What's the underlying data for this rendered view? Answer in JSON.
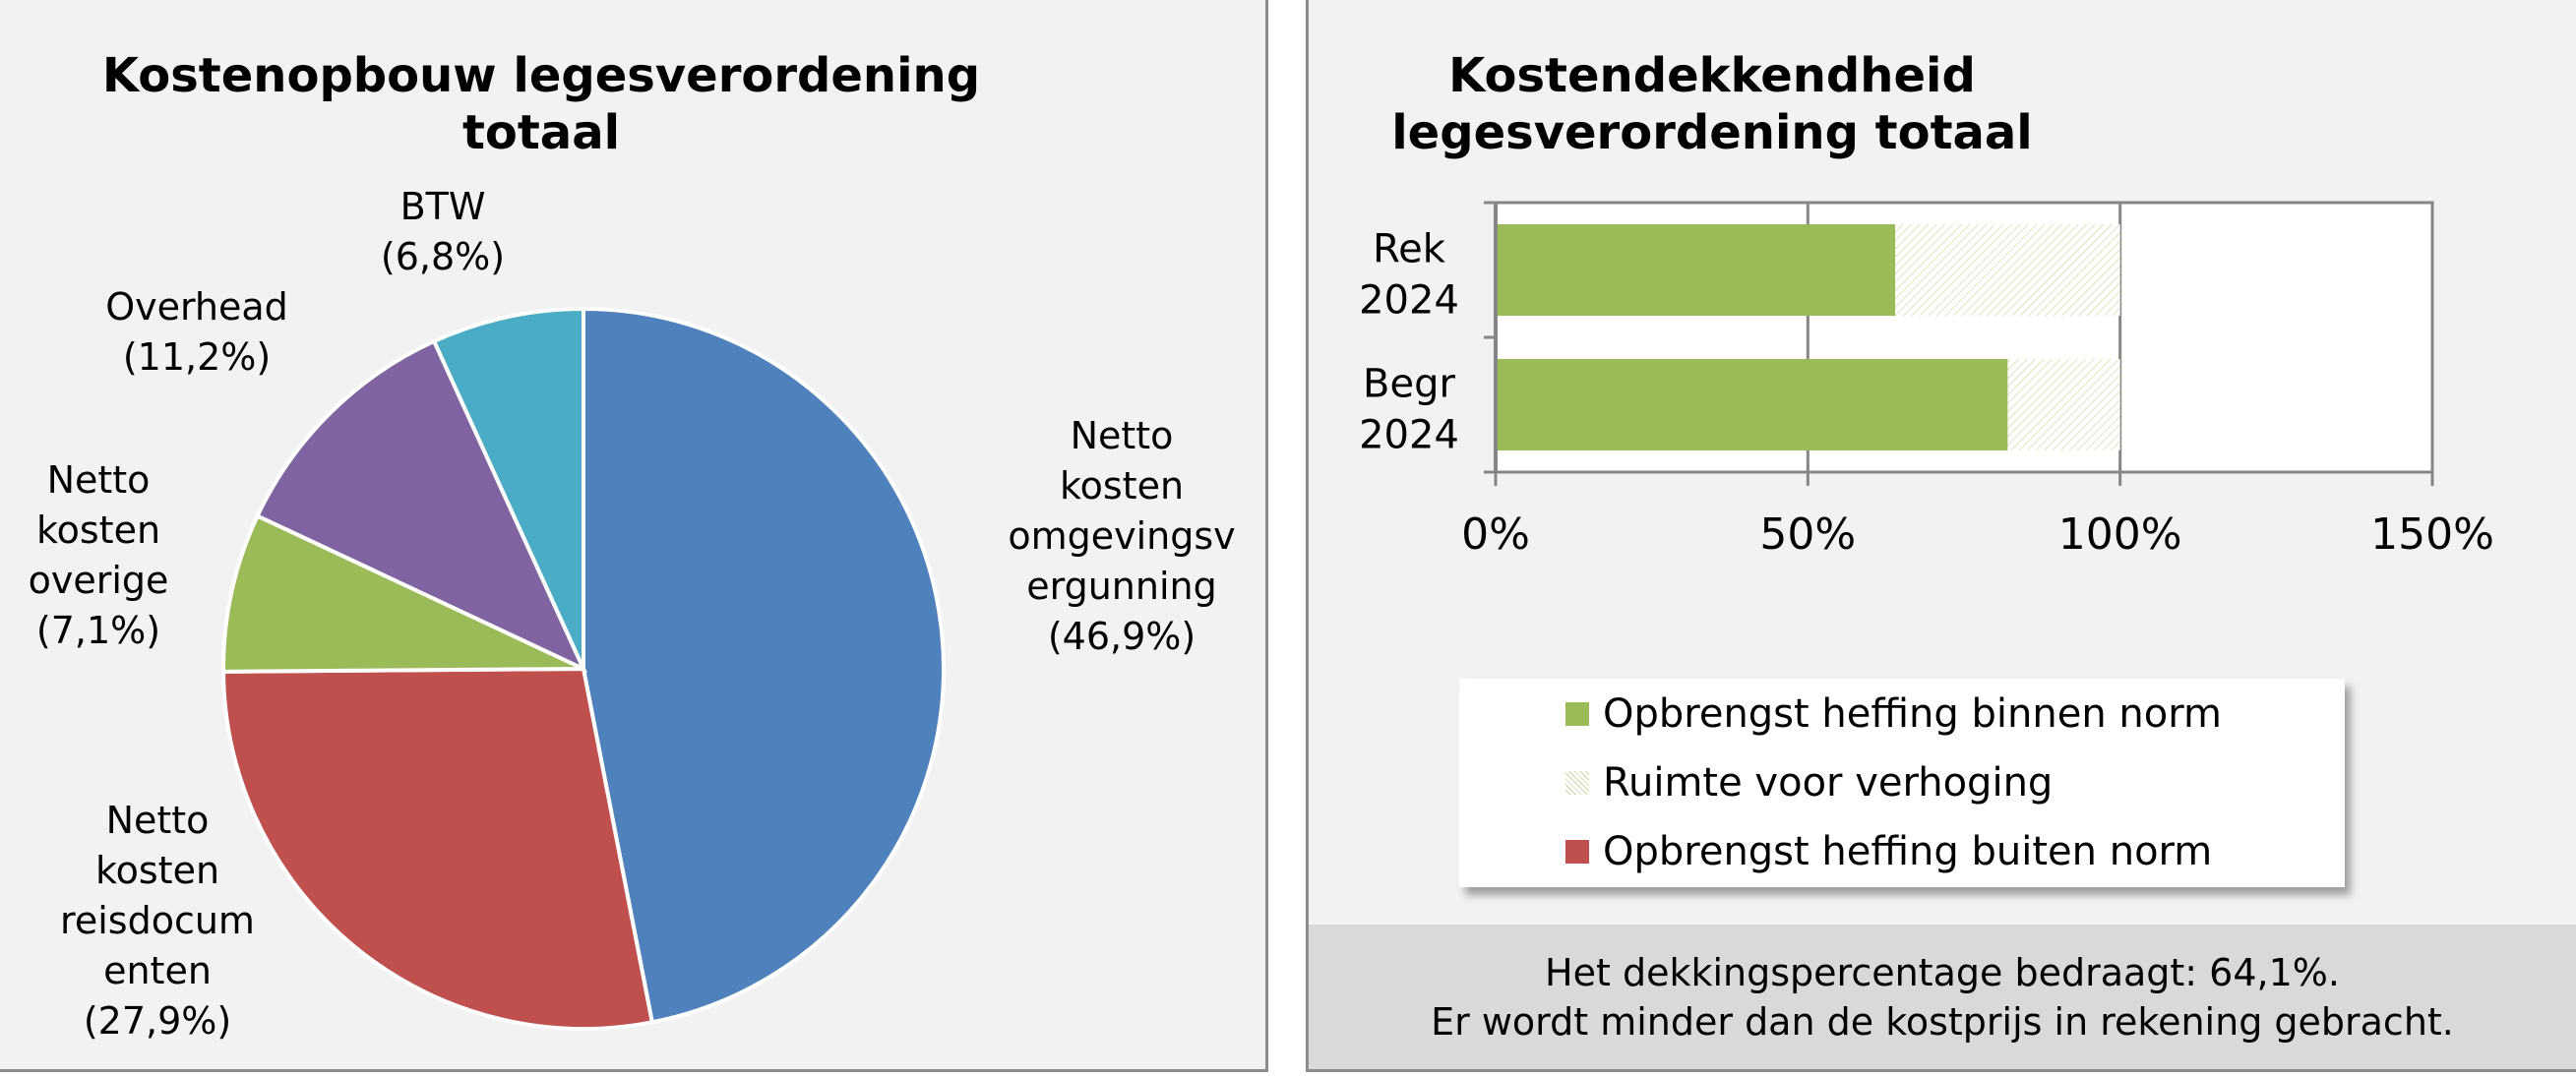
{
  "left": {
    "title_line1": "Kostenopbouw  legesverordening",
    "title_line2": "totaal"
  },
  "right": {
    "title_line1": "Kostendekkendheid",
    "title_line2": "legesverordening  totaal",
    "note_line1": "Het dekkingspercentage  bedraagt:  64,1%.",
    "note_line2": "Er wordt  minder dan de kostprijs  in rekening  gebracht."
  },
  "chart_data": [
    {
      "type": "pie",
      "title": "Kostenopbouw  legesverordening totaal",
      "slices": [
        {
          "name": "Netto kosten omgevingsvergunning",
          "value": 46.9,
          "color": "#4f81bd",
          "label_lines": [
            "Netto",
            "kosten",
            "omgevingsv",
            "ergunning",
            "(46,9%)"
          ]
        },
        {
          "name": "Netto kosten reisdocumenten",
          "value": 27.9,
          "color": "#c0504d",
          "label_lines": [
            "Netto",
            "kosten",
            "reisdocum",
            "enten",
            "(27,9%)"
          ]
        },
        {
          "name": "Netto kosten overige",
          "value": 7.1,
          "color": "#9bbb59",
          "label_lines": [
            "Netto",
            "kosten",
            "overige",
            "(7,1%)"
          ]
        },
        {
          "name": "Overhead",
          "value": 11.2,
          "color": "#8064a2",
          "label_lines": [
            "Overhead",
            "(11,2%)"
          ]
        },
        {
          "name": "BTW",
          "value": 6.8,
          "color": "#4bacc6",
          "label_lines": [
            "BTW",
            "(6,8%)"
          ]
        }
      ]
    },
    {
      "type": "bar",
      "orientation": "horizontal",
      "stacked": true,
      "title": "Kostendekkendheid legesverordening  totaal",
      "categories": [
        [
          "Rek",
          "2024"
        ],
        [
          "Begr",
          "2024"
        ]
      ],
      "series": [
        {
          "name": "Opbrengst heffing binnen norm",
          "color": "#9bbb59",
          "values": [
            64,
            82
          ]
        },
        {
          "name": "Ruimte voor verhoging",
          "color": "#9bbb59",
          "pattern": "hatched",
          "values": [
            36,
            18
          ]
        },
        {
          "name": "Opbrengst heffing buiten norm",
          "color": "#c0504d",
          "values": [
            0,
            0
          ]
        }
      ],
      "xlim": [
        0,
        150
      ],
      "xticks": [
        0,
        50,
        100,
        150
      ],
      "xtick_labels": [
        "0%",
        "50%",
        "100%",
        "150%"
      ],
      "grid": true,
      "legend": "bottom"
    }
  ]
}
